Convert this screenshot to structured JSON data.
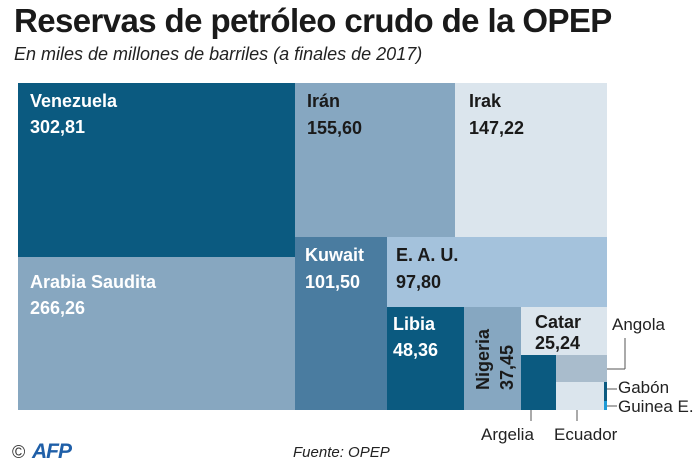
{
  "header": {
    "title": "Reservas de petróleo crudo de la OPEP",
    "subtitle": "En miles de millones de barriles (a finales de 2017)"
  },
  "footer": {
    "copyright": "©",
    "logo": "AFP",
    "source": "Fuente: OPEP"
  },
  "chart_data": {
    "type": "treemap",
    "title": "Reservas de petróleo crudo de la OPEP",
    "subtitle": "En miles de millones de barriles (a finales de 2017)",
    "unit": "miles de millones de barriles",
    "items": [
      {
        "name": "Venezuela",
        "label": "302,81",
        "value": 302.81,
        "color": "#0b5a80",
        "text_color": "#ffffff"
      },
      {
        "name": "Arabia Saudita",
        "label": "266,26",
        "value": 266.26,
        "color": "#87a7c0",
        "text_color": "#ffffff"
      },
      {
        "name": "Irán",
        "label": "155,60",
        "value": 155.6,
        "color": "#86a7c1",
        "text_color": "#1a1a1a"
      },
      {
        "name": "Irak",
        "label": "147,22",
        "value": 147.22,
        "color": "#dbe5ed",
        "text_color": "#1a1a1a"
      },
      {
        "name": "Kuwait",
        "label": "101,50",
        "value": 101.5,
        "color": "#4a7ca0",
        "text_color": "#ffffff"
      },
      {
        "name": "E. A. U.",
        "label": "97,80",
        "value": 97.8,
        "color": "#a4c2dc",
        "text_color": "#1a1a1a"
      },
      {
        "name": "Libia",
        "label": "48,36",
        "value": 48.36,
        "color": "#0b5a80",
        "text_color": "#ffffff"
      },
      {
        "name": "Nigeria",
        "label": "37,45",
        "value": 37.45,
        "color": "#86a7c1",
        "text_color": "#1a1a1a"
      },
      {
        "name": "Catar",
        "label": "25,24",
        "value": 25.24,
        "color": "#dbe5ed",
        "text_color": "#1a1a1a"
      },
      {
        "name": "Argelia",
        "label": "",
        "value": 12.2,
        "color": "#0b5a80",
        "text_color": "#222222"
      },
      {
        "name": "Angola",
        "label": "",
        "value": 8.4,
        "color": "#a9bccc",
        "text_color": "#222222"
      },
      {
        "name": "Ecuador",
        "label": "",
        "value": 8.3,
        "color": "#dbe5ed",
        "text_color": "#222222"
      },
      {
        "name": "Gabón",
        "label": "",
        "value": 2.0,
        "color": "#0b5a80",
        "text_color": "#222222"
      },
      {
        "name": "Guinea E.",
        "label": "",
        "value": 1.1,
        "color": "#1d9ad6",
        "text_color": "#222222"
      }
    ]
  }
}
